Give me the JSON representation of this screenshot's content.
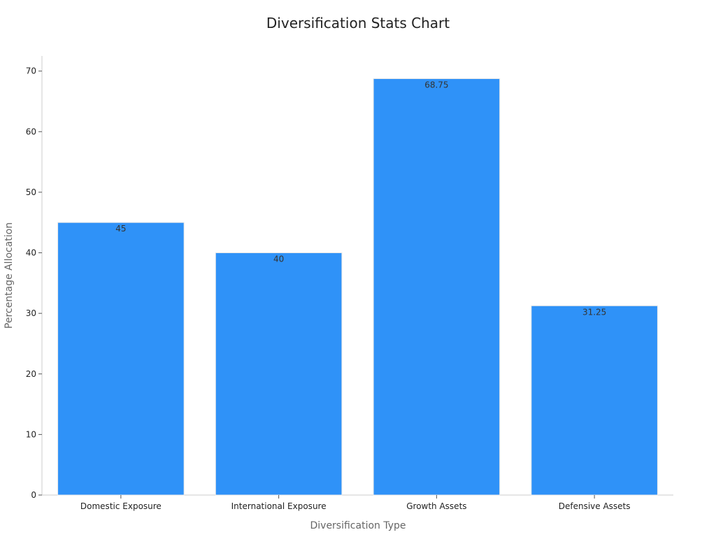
{
  "chart_data": {
    "type": "bar",
    "title": "Diversification Stats Chart",
    "xlabel": "Diversification Type",
    "ylabel": "Percentage Allocation",
    "categories": [
      "Domestic Exposure",
      "International Exposure",
      "Growth Assets",
      "Defensive Assets"
    ],
    "values": [
      45,
      40,
      68.75,
      31.25
    ],
    "data_labels": [
      "45",
      "40",
      "68.75",
      "31.25"
    ],
    "ylim": [
      0,
      72.5
    ],
    "yticks": [
      0,
      10,
      20,
      30,
      40,
      50,
      60,
      70
    ],
    "bar_color": "#2f92f8",
    "grid": false,
    "legend": "none"
  }
}
